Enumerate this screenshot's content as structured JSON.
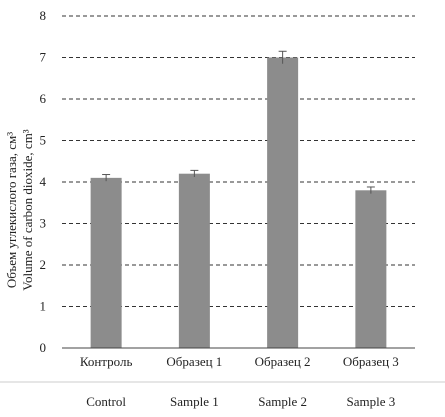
{
  "chart_data": {
    "type": "bar",
    "categories": [
      "Контроль",
      "Образец 1",
      "Образец 2",
      "Образец 3"
    ],
    "categories_en": [
      "Control",
      "Sample 1",
      "Sample 2",
      "Sample 3"
    ],
    "values": [
      4.1,
      4.2,
      7.0,
      3.8
    ],
    "errors": [
      0.08,
      0.08,
      0.15,
      0.08
    ],
    "ylim": [
      0,
      8
    ],
    "yticks": [
      "0",
      "1",
      "2",
      "3",
      "4",
      "5",
      "6",
      "7",
      "8"
    ],
    "ylabel_ru": "Объем углекислого газа, см³",
    "ylabel_en": "Volume of carbon dioxide, cm³",
    "grid": "horizontal dashed",
    "bar_color": "#8c8c8c",
    "grid_color": "#333333"
  }
}
